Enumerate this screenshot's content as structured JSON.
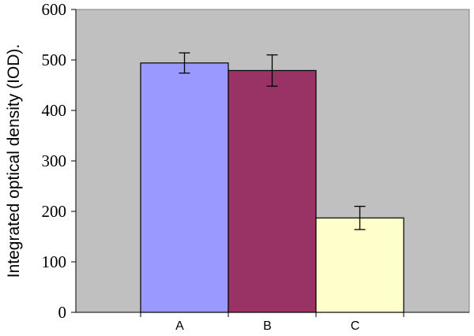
{
  "chart_data": {
    "type": "bar",
    "title": "",
    "xlabel": "",
    "ylabel": "Integrated optical density (IOD).",
    "categories": [
      "A",
      "B",
      "C"
    ],
    "values": [
      494,
      479,
      187
    ],
    "errors": [
      20,
      31,
      23
    ],
    "colors": [
      "#9999ff",
      "#993366",
      "#ffffcc"
    ],
    "ylim": [
      0,
      600
    ],
    "yticks": [
      "0",
      "100",
      "200",
      "300",
      "400",
      "500",
      "600"
    ],
    "plot_background": "#c0c0c0",
    "grid": false,
    "legend": "none"
  }
}
